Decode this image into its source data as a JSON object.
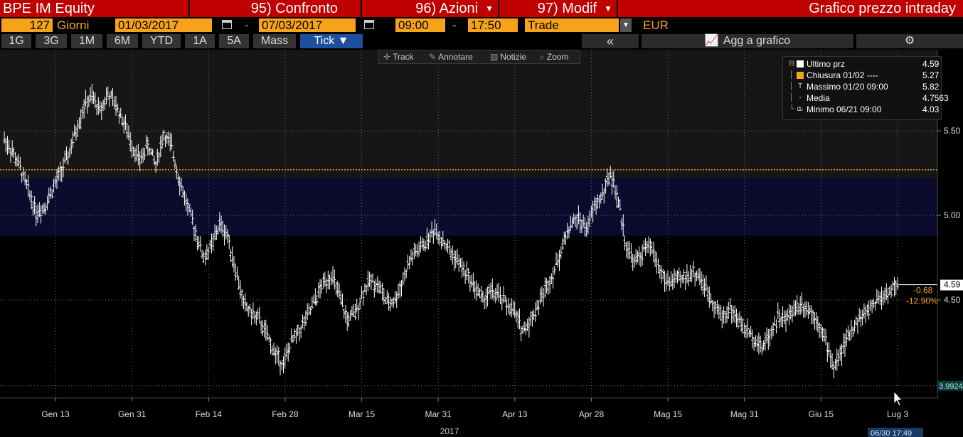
{
  "header": {
    "security": "BPE IM Equity",
    "menu_compare": "95) Confronto",
    "menu_actions": "96) Azioni",
    "menu_modify": "97) Modif",
    "page_title": "Grafico prezzo intraday"
  },
  "controls": {
    "days_count": "127",
    "days_label": "Giorni",
    "start_date": "01/03/2017",
    "dash1": "-",
    "end_date": "07/03/2017",
    "start_time": "09:00",
    "dash2": "-",
    "end_time": "17:50",
    "mode": "Trade",
    "currency": "EUR"
  },
  "periods": [
    "1G",
    "3G",
    "1M",
    "6M",
    "YTD",
    "1A",
    "5A",
    "Mass",
    "Tick ▼"
  ],
  "right_toolbar": {
    "collapse": "«",
    "add_chart": "Agg a grafico",
    "settings": "⚙"
  },
  "tools": {
    "track": "Track",
    "annotate": "Annotare",
    "news": "Notizie",
    "zoom": "Zoom"
  },
  "legend": [
    {
      "label": "Ultimo prz",
      "value": "4.59",
      "color": "#ffffff",
      "symbol": "sq"
    },
    {
      "label": "Chiusura 01/02 ----",
      "value": "5.27",
      "color": "#f7a21b",
      "symbol": "sq"
    },
    {
      "label": "Massimo 01/20 09:00",
      "value": "5.82",
      "color": "#cccccc",
      "symbol": "T"
    },
    {
      "label": "Media",
      "value": "4.7563",
      "color": "#cccccc",
      "symbol": "-o-"
    },
    {
      "label": "Minimo 06/21 09:00",
      "value": "4.03",
      "color": "#cccccc",
      "symbol": "⊥"
    }
  ],
  "colors": {
    "accent_red": "#c00000",
    "accent_orange": "#f7a21b",
    "price": "#ffffff",
    "band": "#0b0b2e"
  },
  "chart_data": {
    "type": "ohlc",
    "yticks": [
      "5.50",
      "5.00",
      "4.50"
    ],
    "ylim": [
      3.92,
      5.98
    ],
    "grid": true,
    "xticks": [
      "Gen 13",
      "Gen 31",
      "Feb 14",
      "Feb 28",
      "Mar 15",
      "Mar 31",
      "Apr 13",
      "Apr 28",
      "Mag 15",
      "Mag 31",
      "Giu 15",
      "Lug 3"
    ],
    "year_label": "2017",
    "reference_close": 5.27,
    "last_price": "4.59",
    "change_abs": "-0.68",
    "change_pct": "-12.90%",
    "low_marker": "3.9924",
    "last_time": "06/30 17:49",
    "y": [
      5.45,
      5.38,
      5.28,
      5.15,
      5.02,
      5.05,
      5.15,
      5.25,
      5.35,
      5.5,
      5.65,
      5.7,
      5.62,
      5.72,
      5.65,
      5.55,
      5.42,
      5.32,
      5.42,
      5.3,
      5.48,
      5.4,
      5.2,
      5.05,
      4.9,
      4.75,
      4.82,
      4.95,
      4.88,
      4.68,
      4.48,
      4.42,
      4.38,
      4.28,
      4.18,
      4.12,
      4.25,
      4.32,
      4.4,
      4.5,
      4.6,
      4.65,
      4.52,
      4.38,
      4.42,
      4.55,
      4.62,
      4.58,
      4.48,
      4.5,
      4.62,
      4.75,
      4.8,
      4.85,
      4.92,
      4.85,
      4.78,
      4.72,
      4.65,
      4.58,
      4.5,
      4.55,
      4.52,
      4.48,
      4.42,
      4.32,
      4.38,
      4.48,
      4.58,
      4.68,
      4.82,
      4.95,
      4.98,
      4.92,
      5.05,
      5.12,
      5.25,
      5.08,
      4.82,
      4.72,
      4.78,
      4.82,
      4.7,
      4.6,
      4.62,
      4.62,
      4.66,
      4.65,
      4.56,
      4.48,
      4.4,
      4.45,
      4.38,
      4.32,
      4.28,
      4.22,
      4.3,
      4.4,
      4.38,
      4.45,
      4.48,
      4.44,
      4.38,
      4.25,
      4.1,
      4.2,
      4.3,
      4.38,
      4.42,
      4.48,
      4.52,
      4.55,
      4.59
    ]
  }
}
